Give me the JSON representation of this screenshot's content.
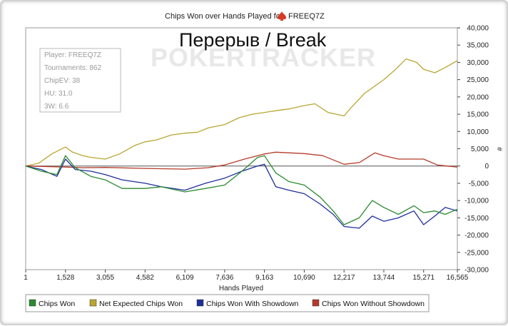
{
  "chart_data": {
    "type": "line",
    "title_prefix": "Chips Won over Hands Played for",
    "player_name": "FREEQ7Z",
    "overlay_text": "Перерыв / Break",
    "watermark": "POKERTRACKER",
    "xlabel": "Hands Played",
    "ylabel": "#",
    "xlim": [
      1,
      16565
    ],
    "ylim": [
      -30000,
      40000
    ],
    "x_ticks": [
      "1",
      "1,528",
      "3,055",
      "4,582",
      "6,109",
      "7,636",
      "9,163",
      "10,690",
      "12,217",
      "13,744",
      "15,271",
      "16,565"
    ],
    "x_tick_values": [
      1,
      1528,
      3055,
      4582,
      6109,
      7636,
      9163,
      10690,
      12217,
      13744,
      15271,
      16565
    ],
    "y_ticks": [
      "40,000",
      "35,000",
      "30,000",
      "25,000",
      "20,000",
      "15,000",
      "10,000",
      "5,000",
      "0",
      "-5,000",
      "-10,000",
      "-15,000",
      "-20,000",
      "-25,000",
      "-30,000"
    ],
    "y_tick_values": [
      40000,
      35000,
      30000,
      25000,
      20000,
      15000,
      10000,
      5000,
      0,
      -5000,
      -10000,
      -15000,
      -20000,
      -25000,
      -30000
    ],
    "stats": [
      "Player: FREEQ7Z",
      "Tournaments: 862",
      "ChipEV: 38",
      "HU: 31.0",
      "3W: 6.6"
    ],
    "legend_position": "bottom",
    "series": [
      {
        "name": "Net Expected Chips Won",
        "color": "#b9a632",
        "x": [
          1,
          500,
          1000,
          1528,
          1800,
          2200,
          2500,
          3055,
          3600,
          4200,
          4582,
          5000,
          5600,
          6109,
          6600,
          7000,
          7636,
          8200,
          8700,
          9163,
          9600,
          10100,
          10690,
          11100,
          11600,
          12217,
          12500,
          13000,
          13744,
          14200,
          14600,
          15000,
          15271,
          15700,
          16100,
          16565
        ],
        "y": [
          0,
          800,
          3500,
          5500,
          4000,
          3000,
          2500,
          2000,
          3500,
          6000,
          7000,
          7500,
          9000,
          9500,
          9800,
          11000,
          12000,
          14000,
          15000,
          15500,
          16000,
          16500,
          17500,
          18000,
          15500,
          14500,
          17000,
          21000,
          25000,
          28000,
          31000,
          30000,
          28000,
          27000,
          28500,
          30500
        ]
      },
      {
        "name": "Chips Won Without Showdown",
        "color": "#b53a2a",
        "x": [
          1,
          1528,
          2200,
          3055,
          4582,
          6109,
          7000,
          7636,
          8400,
          9163,
          9600,
          10690,
          11400,
          12217,
          12800,
          13400,
          13744,
          14300,
          15271,
          15800,
          16565
        ],
        "y": [
          0,
          -300,
          -500,
          -400,
          -700,
          -900,
          -500,
          300,
          2000,
          3500,
          4000,
          3600,
          3000,
          500,
          1000,
          3800,
          3000,
          2000,
          2000,
          300,
          -300
        ]
      },
      {
        "name": "Chips Won With Showdown",
        "color": "#1f2e9c",
        "x": [
          1,
          600,
          1200,
          1528,
          1900,
          2500,
          3055,
          3700,
          4582,
          5200,
          6109,
          6900,
          7636,
          8300,
          8900,
          9163,
          9600,
          10100,
          10690,
          11300,
          11800,
          12217,
          12800,
          13300,
          13744,
          14300,
          14900,
          15271,
          15700,
          16100,
          16565
        ],
        "y": [
          0,
          -1000,
          -3000,
          2000,
          -1000,
          -1500,
          -2500,
          -4000,
          -5000,
          -6000,
          -7000,
          -5000,
          -3500,
          -1500,
          0,
          500,
          -6000,
          -7000,
          -8000,
          -11000,
          -14000,
          -17500,
          -18000,
          -14500,
          -16000,
          -15000,
          -13000,
          -17000,
          -14500,
          -12000,
          -13000
        ]
      },
      {
        "name": "Chips Won",
        "color": "#2b8a2f",
        "x": [
          1,
          600,
          1200,
          1528,
          1900,
          2500,
          3055,
          3700,
          4582,
          5200,
          6109,
          6900,
          7636,
          8300,
          8900,
          9163,
          9600,
          10100,
          10690,
          11300,
          11800,
          12217,
          12800,
          13300,
          13744,
          14300,
          14900,
          15271,
          15700,
          16100,
          16565
        ],
        "y": [
          0,
          -1500,
          -2500,
          3000,
          -500,
          -3000,
          -4000,
          -6500,
          -6500,
          -6000,
          -7500,
          -6500,
          -5500,
          -1500,
          2500,
          3000,
          -2000,
          -4500,
          -5500,
          -9000,
          -13000,
          -17000,
          -15000,
          -10000,
          -12000,
          -14000,
          -11500,
          -13500,
          -13000,
          -14000,
          -12500
        ]
      }
    ],
    "legend_order": [
      "Chips Won",
      "Net Expected Chips Won",
      "Chips Won With Showdown",
      "Chips Won Without Showdown"
    ]
  }
}
